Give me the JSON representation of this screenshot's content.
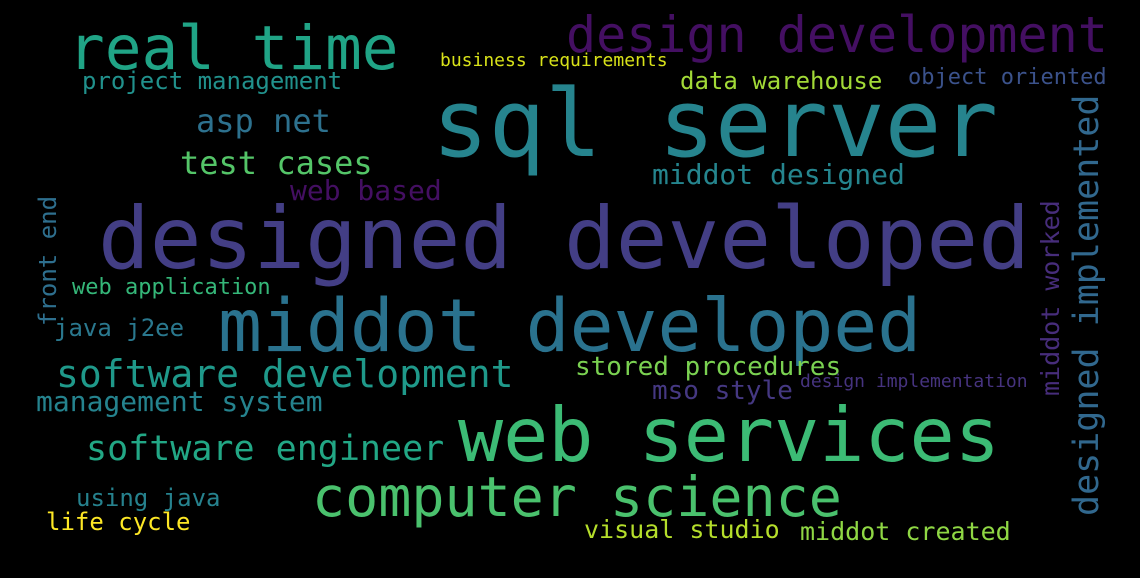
{
  "words": [
    {
      "text": "sql server",
      "color": "#26848e"
    },
    {
      "text": "designed developed",
      "color": "#433e85"
    },
    {
      "text": "middot developed",
      "color": "#2a728e"
    },
    {
      "text": "web services",
      "color": "#3cbb75"
    },
    {
      "text": "computer science",
      "color": "#4ac16d"
    },
    {
      "text": "real time",
      "color": "#20a486"
    },
    {
      "text": "design development",
      "color": "#440f62"
    },
    {
      "text": "software development",
      "color": "#1f998a"
    },
    {
      "text": "software engineer",
      "color": "#22a785"
    },
    {
      "text": "designed implemented",
      "color": "#31688e"
    },
    {
      "text": "management system",
      "color": "#25838e"
    },
    {
      "text": "test cases",
      "color": "#54c568"
    },
    {
      "text": "asp net",
      "color": "#2d718e"
    },
    {
      "text": "web based",
      "color": "#440f62"
    },
    {
      "text": "middot designed",
      "color": "#25858e"
    },
    {
      "text": "stored procedures",
      "color": "#7ad151"
    },
    {
      "text": "mso style",
      "color": "#453882"
    },
    {
      "text": "middot worked",
      "color": "#472d7b"
    },
    {
      "text": "front end",
      "color": "#2e6f8e"
    },
    {
      "text": "web application",
      "color": "#35b779"
    },
    {
      "text": "java j2ee",
      "color": "#2a788e"
    },
    {
      "text": "project management",
      "color": "#21918c"
    },
    {
      "text": "data warehouse",
      "color": "#a2da37"
    },
    {
      "text": "object oriented",
      "color": "#3b528b"
    },
    {
      "text": "business requirements",
      "color": "#d8e219"
    },
    {
      "text": "using java",
      "color": "#26828e"
    },
    {
      "text": "life cycle",
      "color": "#fde725"
    },
    {
      "text": "visual studio",
      "color": "#b5de2b"
    },
    {
      "text": "middot created",
      "color": "#8fd744"
    },
    {
      "text": "design implementation",
      "color": "#46337f"
    }
  ]
}
